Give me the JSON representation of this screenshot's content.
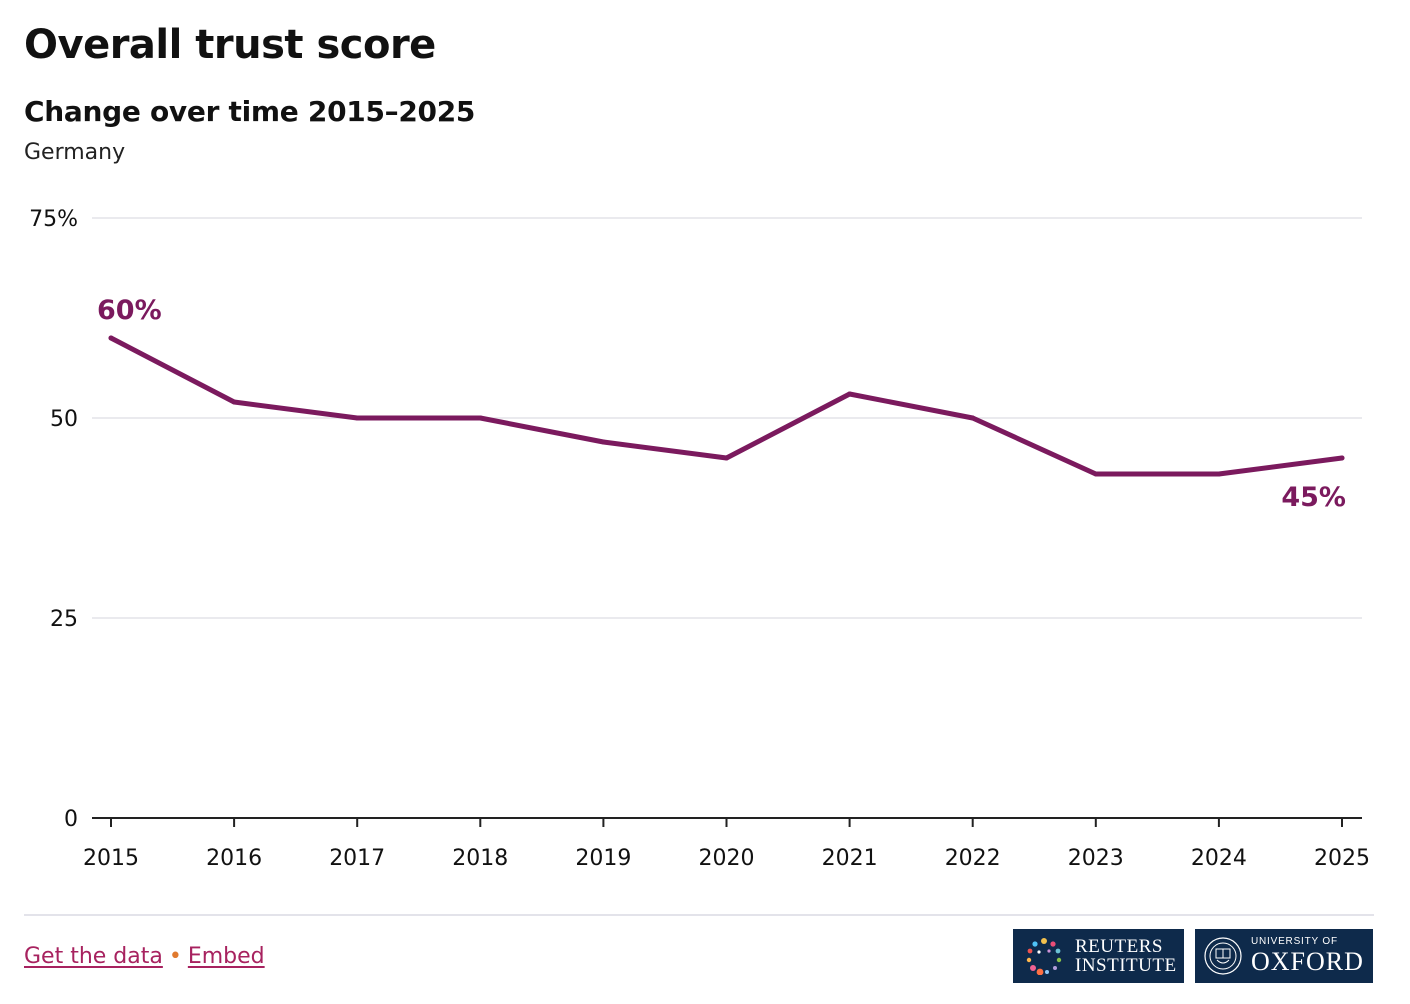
{
  "header": {
    "title": "Overall trust score",
    "subtitle": "Change over time 2015–2025",
    "note": "Germany"
  },
  "chart_data": {
    "type": "line",
    "title": "Overall trust score",
    "subtitle": "Change over time 2015–2025",
    "x": [
      "2015",
      "2016",
      "2017",
      "2018",
      "2019",
      "2020",
      "2021",
      "2022",
      "2023",
      "2024",
      "2025"
    ],
    "series": [
      {
        "values": [
          60,
          52,
          50,
          50,
          47,
          45,
          53,
          50,
          43,
          43,
          45
        ]
      }
    ],
    "ylim": [
      0,
      75
    ],
    "yticks": [
      0,
      25,
      50,
      75
    ],
    "ytick_labels": [
      "0",
      "25",
      "50",
      "75%"
    ],
    "annotations": [
      {
        "x": "2015",
        "label": "60%"
      },
      {
        "x": "2025",
        "label": "45%"
      }
    ],
    "grid": true,
    "line_color": "#7b1a5e"
  },
  "footer": {
    "get_data_label": "Get the data",
    "separator": "•",
    "embed_label": "Embed",
    "reuters_line1": "REUTERS",
    "reuters_line2": "INSTITUTE",
    "oxford_line1": "UNIVERSITY OF",
    "oxford_line2": "OXFORD"
  },
  "colors": {
    "line": "#7b1a5e",
    "link": "#a7225f",
    "separator": "#e07a2f",
    "logo_bg": "#0e2a4b"
  }
}
